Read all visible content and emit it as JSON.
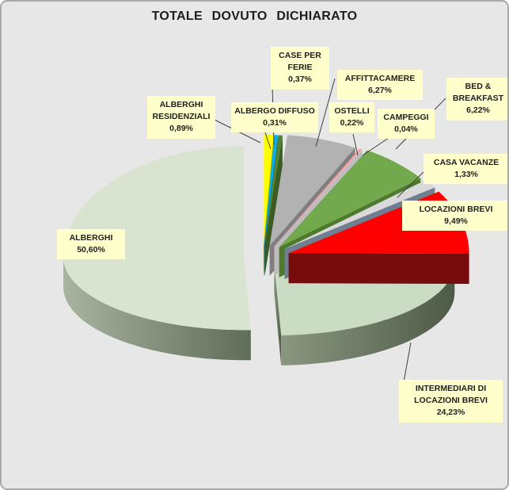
{
  "chart_data": {
    "type": "pie",
    "title": "TOTALE DOVUTO DICHIARATO",
    "style": "3d-exploded-pie",
    "value_unit": "%",
    "decimal_style": "comma",
    "slices": [
      {
        "label": "ALBERGHI RESIDENZIALI",
        "value": 0.89,
        "display": "0,89%",
        "color": "#FFFF00",
        "side": "#B8B800"
      },
      {
        "label": "ALBERGO DIFFUSO",
        "value": 0.31,
        "display": "0,31%",
        "color": "#00B0F0",
        "side": "#0072A5"
      },
      {
        "label": "CASE PER FERIE",
        "value": 0.37,
        "display": "0,37%",
        "color": "#548235",
        "side": "#3A5C24"
      },
      {
        "label": "AFFITTACAMERE",
        "value": 6.27,
        "display": "6,27%",
        "color": "#B2B2B2",
        "side": "#7F7F7F"
      },
      {
        "label": "OSTELLI",
        "value": 0.22,
        "display": "0,22%",
        "color": "#F2A0A5",
        "side": "#DB8C91"
      },
      {
        "label": "CAMPEGGI",
        "value": 0.04,
        "display": "0,04%",
        "color": "#E8E8E8",
        "side": "#BDBDBD"
      },
      {
        "label": "BED & BREAKFAST",
        "value": 6.22,
        "display": "6,22%",
        "color": "#73A94D",
        "side": "#4E7A2E"
      },
      {
        "label": "CASA VACANZE",
        "value": 1.33,
        "display": "1,33%",
        "color": "#D9D9D9",
        "side": "#6F7E90"
      },
      {
        "label": "LOCAZIONI BREVI",
        "value": 9.49,
        "display": "9,49%",
        "color": "#FE0000",
        "side": "#780C0C"
      },
      {
        "label": "INTERMEDIARI  DI LOCAZIONI BREVI",
        "value": 24.23,
        "display": "24,23%",
        "color": "#CBDCC4",
        "side": "#66745F"
      },
      {
        "label": "ALBERGHI",
        "value": 50.6,
        "display": "50,60%",
        "color": "#D8E4D0",
        "side": "#79876F"
      }
    ]
  },
  "colors": {
    "background": "#E8E7E7",
    "frame_border": "#A9A9A9",
    "label_background": "#FFFFCC",
    "label_text": "#1F1F1F",
    "leader_line": "#404040",
    "title_text": "#1C1C1C"
  }
}
